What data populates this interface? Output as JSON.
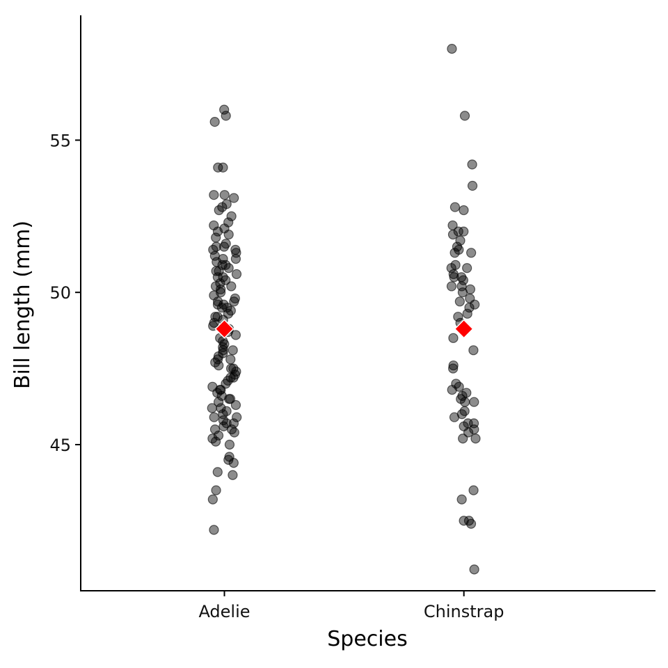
{
  "chart_data": {
    "type": "scatter",
    "title": "",
    "xlabel": "Species",
    "ylabel": "Bill length (mm)",
    "categories": [
      "Adelie",
      "Chinstrap"
    ],
    "ylim": [
      40.2,
      59.1
    ],
    "yticks": [
      45,
      50,
      55
    ],
    "grid": false,
    "legend": "none",
    "point_color": "#000000",
    "point_opacity": 0.45,
    "mean_color": "#ff0000",
    "series": [
      {
        "category": "Adelie",
        "values": [
          56.0,
          55.8,
          55.6,
          54.1,
          54.1,
          53.2,
          53.2,
          53.1,
          52.9,
          52.8,
          52.7,
          52.5,
          52.3,
          52.2,
          52.1,
          52.0,
          51.9,
          51.8,
          51.6,
          51.5,
          51.5,
          51.4,
          51.4,
          51.3,
          51.2,
          51.1,
          51.1,
          51.0,
          50.9,
          50.9,
          50.8,
          50.7,
          50.7,
          50.6,
          50.5,
          50.5,
          50.4,
          50.3,
          50.2,
          50.2,
          50.1,
          50.0,
          49.9,
          49.8,
          49.7,
          49.7,
          49.6,
          49.6,
          49.5,
          49.5,
          49.4,
          49.3,
          49.2,
          49.2,
          49.1,
          49.0,
          48.9,
          48.8,
          48.8,
          48.7,
          48.6,
          48.5,
          48.4,
          48.3,
          48.2,
          48.1,
          48.1,
          48.0,
          47.9,
          47.8,
          47.8,
          47.7,
          47.6,
          47.5,
          47.5,
          47.4,
          47.3,
          47.2,
          47.2,
          47.1,
          47.0,
          46.9,
          46.8,
          46.8,
          46.7,
          46.6,
          46.5,
          46.5,
          46.4,
          46.3,
          46.2,
          46.2,
          46.1,
          46.0,
          45.9,
          45.9,
          45.8,
          45.7,
          45.7,
          45.6,
          45.5,
          45.5,
          45.4,
          45.3,
          45.2,
          45.1,
          45.0,
          44.6,
          44.5,
          44.4,
          44.1,
          44.0,
          43.5,
          43.2,
          42.2
        ],
        "mean": 48.8
      },
      {
        "category": "Chinstrap",
        "values": [
          58.0,
          55.8,
          54.2,
          53.5,
          52.8,
          52.7,
          52.2,
          52.0,
          52.0,
          51.9,
          51.7,
          51.5,
          51.4,
          51.3,
          51.3,
          50.9,
          50.8,
          50.8,
          50.6,
          50.5,
          50.5,
          50.4,
          50.2,
          50.2,
          50.1,
          50.0,
          49.8,
          49.7,
          49.6,
          49.5,
          49.3,
          49.2,
          49.0,
          48.5,
          48.1,
          47.6,
          47.5,
          47.0,
          46.9,
          46.8,
          46.7,
          46.6,
          46.5,
          46.4,
          46.4,
          46.1,
          46.0,
          45.9,
          45.7,
          45.7,
          45.6,
          45.5,
          45.4,
          45.2,
          45.2,
          43.5,
          43.2,
          42.5,
          42.5,
          42.4,
          40.9
        ],
        "mean": 48.8
      }
    ]
  }
}
